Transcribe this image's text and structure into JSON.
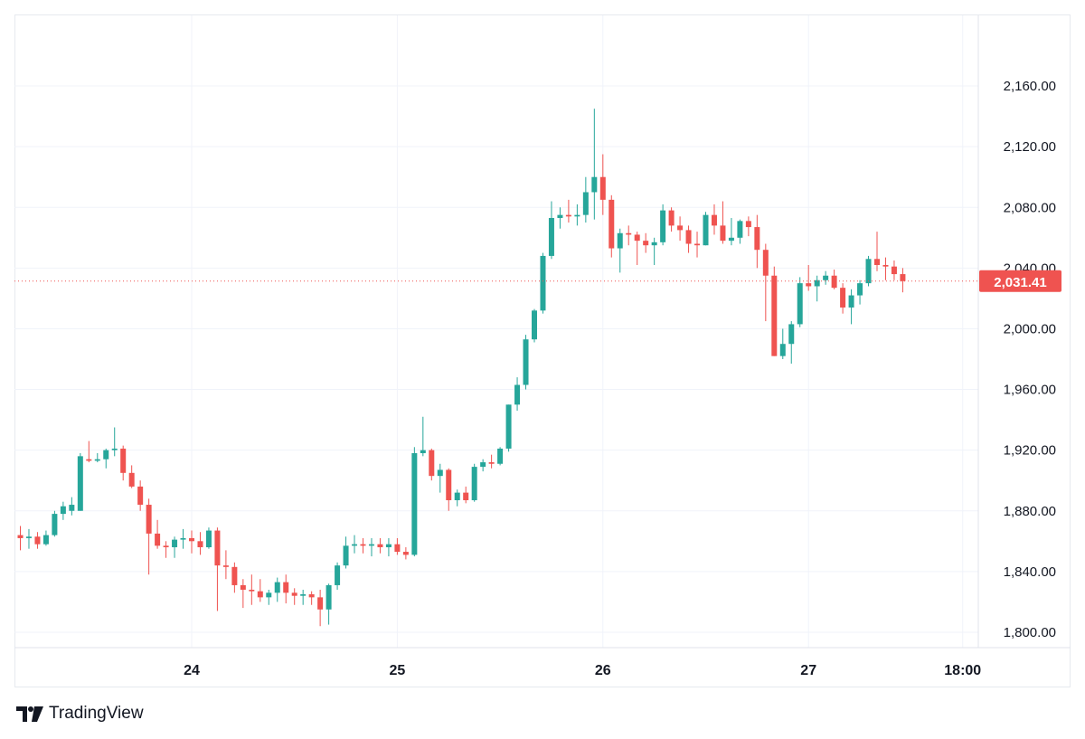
{
  "brand": {
    "name": "TradingView",
    "logo_icon": "tradingview-logo-icon"
  },
  "colors": {
    "up": "#26a69a",
    "down": "#ef5350",
    "price_line": "#ef5350",
    "grid": "#f0f3fa",
    "text": "#131722"
  },
  "chart_data": {
    "type": "candlestick",
    "ylim": [
      1780,
      2180
    ],
    "y_ticks": [
      "2,160.00",
      "2,120.00",
      "2,080.00",
      "2,040.00",
      "2,000.00",
      "1,960.00",
      "1,920.00",
      "1,880.00",
      "1,840.00",
      "1,800.00"
    ],
    "y_tick_values": [
      2160,
      2120,
      2080,
      2040,
      2000,
      1960,
      1920,
      1880,
      1840,
      1800
    ],
    "x_ticks": [
      "24",
      "25",
      "26",
      "27",
      "18:00"
    ],
    "x_tick_index": [
      20,
      44,
      68,
      92,
      110
    ],
    "last_price": "2,031.41",
    "last_price_value": 2031.41,
    "candles": [
      [
        1864,
        1870,
        1854,
        1862
      ],
      [
        1862,
        1868,
        1855,
        1863
      ],
      [
        1863,
        1866,
        1855,
        1858
      ],
      [
        1858,
        1867,
        1857,
        1864
      ],
      [
        1864,
        1880,
        1863,
        1878
      ],
      [
        1878,
        1886,
        1874,
        1883
      ],
      [
        1880,
        1889,
        1877,
        1884
      ],
      [
        1880,
        1918,
        1880,
        1916
      ],
      [
        1914,
        1926,
        1912,
        1913
      ],
      [
        1913,
        1918,
        1912,
        1914
      ],
      [
        1914,
        1921,
        1908,
        1920
      ],
      [
        1920,
        1935,
        1916,
        1921
      ],
      [
        1921,
        1923,
        1900,
        1905
      ],
      [
        1905,
        1910,
        1895,
        1896
      ],
      [
        1896,
        1900,
        1880,
        1884
      ],
      [
        1884,
        1888,
        1838,
        1865
      ],
      [
        1865,
        1874,
        1855,
        1857
      ],
      [
        1857,
        1860,
        1849,
        1856
      ],
      [
        1856,
        1863,
        1849,
        1861
      ],
      [
        1861,
        1868,
        1855,
        1862
      ],
      [
        1862,
        1867,
        1852,
        1860
      ],
      [
        1860,
        1866,
        1851,
        1856
      ],
      [
        1856,
        1869,
        1855,
        1867
      ],
      [
        1867,
        1869,
        1814,
        1844
      ],
      [
        1844,
        1854,
        1835,
        1843
      ],
      [
        1843,
        1846,
        1826,
        1831
      ],
      [
        1831,
        1835,
        1816,
        1828
      ],
      [
        1828,
        1838,
        1818,
        1827
      ],
      [
        1827,
        1835,
        1820,
        1823
      ],
      [
        1823,
        1828,
        1818,
        1826
      ],
      [
        1826,
        1836,
        1820,
        1833
      ],
      [
        1833,
        1838,
        1819,
        1826
      ],
      [
        1826,
        1829,
        1818,
        1824
      ],
      [
        1824,
        1828,
        1818,
        1825
      ],
      [
        1825,
        1827,
        1818,
        1823
      ],
      [
        1823,
        1828,
        1804,
        1815
      ],
      [
        1815,
        1832,
        1805,
        1831
      ],
      [
        1831,
        1846,
        1828,
        1844
      ],
      [
        1844,
        1863,
        1842,
        1857
      ],
      [
        1857,
        1864,
        1852,
        1858
      ],
      [
        1858,
        1862,
        1852,
        1857
      ],
      [
        1857,
        1862,
        1850,
        1858
      ],
      [
        1858,
        1862,
        1852,
        1856
      ],
      [
        1856,
        1862,
        1850,
        1858
      ],
      [
        1858,
        1862,
        1851,
        1853
      ],
      [
        1853,
        1856,
        1848,
        1851
      ],
      [
        1851,
        1922,
        1850,
        1918
      ],
      [
        1918,
        1942,
        1916,
        1920
      ],
      [
        1920,
        1921,
        1900,
        1903
      ],
      [
        1903,
        1911,
        1892,
        1907
      ],
      [
        1907,
        1908,
        1880,
        1887
      ],
      [
        1887,
        1894,
        1883,
        1892
      ],
      [
        1892,
        1896,
        1885,
        1887
      ],
      [
        1887,
        1911,
        1886,
        1909
      ],
      [
        1909,
        1914,
        1906,
        1912
      ],
      [
        1912,
        1917,
        1908,
        1911
      ],
      [
        1911,
        1922,
        1910,
        1921
      ],
      [
        1921,
        1950,
        1919,
        1950
      ],
      [
        1950,
        1968,
        1946,
        1963
      ],
      [
        1963,
        1996,
        1960,
        1993
      ],
      [
        1993,
        2013,
        1991,
        2012
      ],
      [
        2012,
        2050,
        2010,
        2048
      ],
      [
        2048,
        2084,
        2046,
        2073
      ],
      [
        2073,
        2080,
        2066,
        2075
      ],
      [
        2075,
        2085,
        2070,
        2074
      ],
      [
        2074,
        2082,
        2068,
        2075
      ],
      [
        2075,
        2100,
        2070,
        2090
      ],
      [
        2090,
        2145,
        2072,
        2100
      ],
      [
        2100,
        2115,
        2075,
        2085
      ],
      [
        2085,
        2088,
        2047,
        2053
      ],
      [
        2053,
        2066,
        2037,
        2063
      ],
      [
        2063,
        2068,
        2055,
        2062
      ],
      [
        2062,
        2064,
        2042,
        2058
      ],
      [
        2058,
        2063,
        2050,
        2055
      ],
      [
        2055,
        2060,
        2042,
        2057
      ],
      [
        2057,
        2082,
        2055,
        2078
      ],
      [
        2078,
        2080,
        2064,
        2068
      ],
      [
        2068,
        2074,
        2058,
        2065
      ],
      [
        2065,
        2068,
        2050,
        2056
      ],
      [
        2056,
        2064,
        2047,
        2055
      ],
      [
        2055,
        2077,
        2055,
        2075
      ],
      [
        2075,
        2082,
        2062,
        2068
      ],
      [
        2068,
        2084,
        2056,
        2058
      ],
      [
        2058,
        2073,
        2055,
        2060
      ],
      [
        2060,
        2072,
        2056,
        2071
      ],
      [
        2071,
        2074,
        2061,
        2067
      ],
      [
        2067,
        2075,
        2040,
        2052
      ],
      [
        2052,
        2056,
        2005,
        2035
      ],
      [
        2035,
        2041,
        1982,
        1982
      ],
      [
        1982,
        2000,
        1980,
        1990
      ],
      [
        1990,
        2005,
        1977,
        2003
      ],
      [
        2003,
        2034,
        2001,
        2030
      ],
      [
        2030,
        2042,
        2025,
        2028
      ],
      [
        2028,
        2035,
        2018,
        2032
      ],
      [
        2032,
        2038,
        2029,
        2035
      ],
      [
        2035,
        2039,
        2026,
        2027
      ],
      [
        2027,
        2030,
        2010,
        2014
      ],
      [
        2014,
        2026,
        2003,
        2022
      ],
      [
        2022,
        2032,
        2016,
        2030
      ],
      [
        2030,
        2048,
        2028,
        2046
      ],
      [
        2046,
        2064,
        2038,
        2042
      ],
      [
        2042,
        2047,
        2032,
        2041
      ],
      [
        2041,
        2045,
        2032,
        2036
      ],
      [
        2036,
        2040,
        2024,
        2031.41
      ]
    ]
  }
}
